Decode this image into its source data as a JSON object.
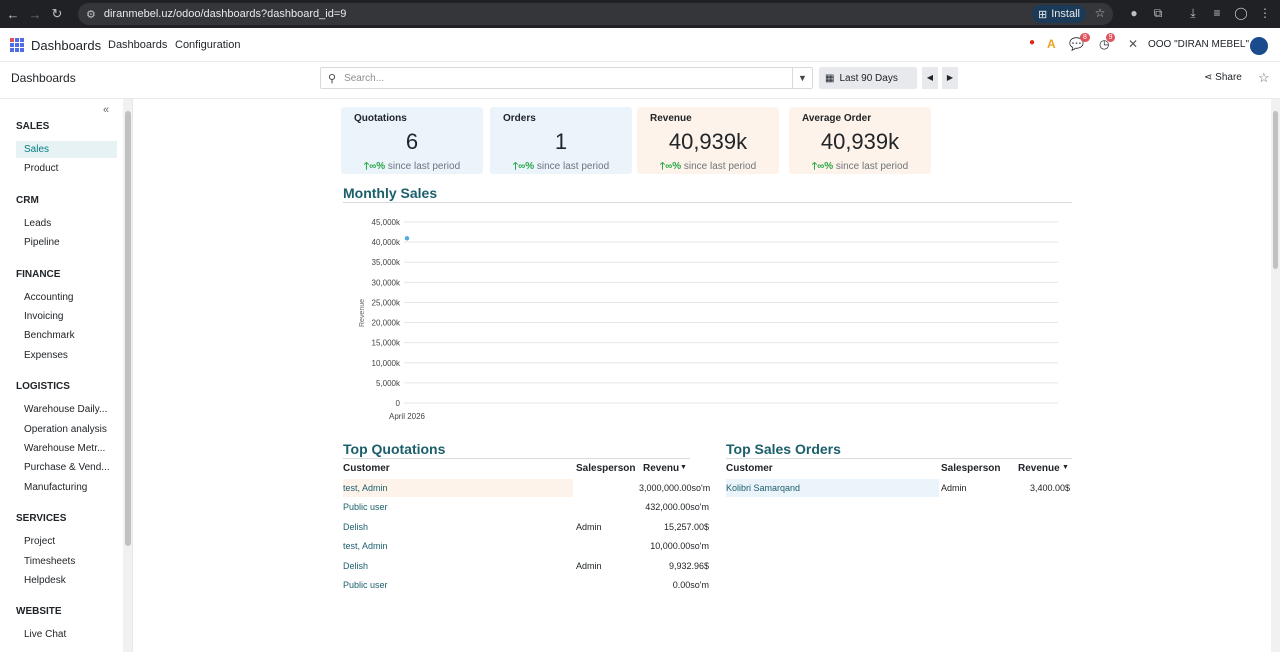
{
  "browser": {
    "url": "diranmebel.uz/odoo/dashboards?dashboard_id=9",
    "install_label": "Install"
  },
  "navbar": {
    "app_name": "Dashboards",
    "menu": [
      "Dashboards",
      "Configuration"
    ],
    "badges": {
      "messages": "8",
      "activities": "9"
    },
    "company": "OOO \"DIRAN MEBEL\""
  },
  "control": {
    "breadcrumb": "Dashboards",
    "search_placeholder": "Search...",
    "period": "Last 90 Days",
    "share": "Share"
  },
  "sidebar": {
    "sections": [
      {
        "title": "SALES",
        "items": [
          "Sales",
          "Product"
        ]
      },
      {
        "title": "CRM",
        "items": [
          "Leads",
          "Pipeline"
        ]
      },
      {
        "title": "FINANCE",
        "items": [
          "Accounting",
          "Invoicing",
          "Benchmark",
          "Expenses"
        ]
      },
      {
        "title": "LOGISTICS",
        "items": [
          "Warehouse Daily...",
          "Operation analysis",
          "Warehouse Metr...",
          "Purchase & Vend...",
          "Manufacturing"
        ]
      },
      {
        "title": "SERVICES",
        "items": [
          "Project",
          "Timesheets",
          "Helpdesk"
        ]
      },
      {
        "title": "WEBSITE",
        "items": [
          "Live Chat"
        ]
      }
    ],
    "active": "Sales"
  },
  "kpis": [
    {
      "title": "Quotations",
      "value": "6",
      "delta": "∞%",
      "since": "since last period",
      "bg": "#ebf3fb"
    },
    {
      "title": "Orders",
      "value": "1",
      "delta": "∞%",
      "since": "since last period",
      "bg": "#ebf3fb"
    },
    {
      "title": "Revenue",
      "value": "40,939k",
      "delta": "∞%",
      "since": "since last period",
      "bg": "#fdf3ea"
    },
    {
      "title": "Average Order",
      "value": "40,939k",
      "delta": "∞%",
      "since": "since last period",
      "bg": "#fdf3ea"
    }
  ],
  "monthly_sales_title": "Monthly Sales",
  "chart_data": {
    "type": "line",
    "x": [
      "April 2026"
    ],
    "series": [
      {
        "values": [
          40939
        ]
      }
    ],
    "ylabel": "Revenue",
    "ylim": [
      0,
      45000
    ],
    "yticks": [
      "0",
      "5,000k",
      "10,000k",
      "15,000k",
      "20,000k",
      "25,000k",
      "30,000k",
      "35,000k",
      "40,000k",
      "45,000k"
    ],
    "grid": true,
    "color": "#4fa8e0"
  },
  "top_quotations": {
    "title": "Top Quotations",
    "headers": [
      "Customer",
      "Salesperson",
      "Revenu"
    ],
    "rows": [
      [
        "test, Admin",
        "",
        "3,000,000.00so'm"
      ],
      [
        "Public user",
        "",
        "432,000.00so'm"
      ],
      [
        "Delish",
        "Admin",
        "15,257.00$"
      ],
      [
        "test, Admin",
        "",
        "10,000.00so'm"
      ],
      [
        "Delish",
        "Admin",
        "9,932.96$"
      ],
      [
        "Public user",
        "",
        "0.00so'm"
      ]
    ]
  },
  "top_orders": {
    "title": "Top Sales Orders",
    "headers": [
      "Customer",
      "Salesperson",
      "Revenue"
    ],
    "rows": [
      [
        "Kolibri Samarqand",
        "Admin",
        "3,400.00$"
      ]
    ]
  }
}
